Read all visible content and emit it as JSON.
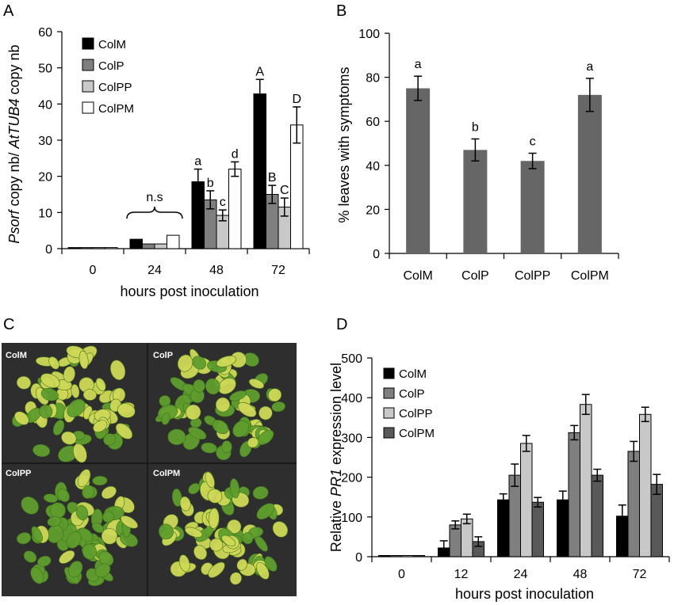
{
  "panels": {
    "a": {
      "letter": "A"
    },
    "b": {
      "letter": "B"
    },
    "c": {
      "letter": "C"
    },
    "d": {
      "letter": "D"
    }
  },
  "photo_labels": [
    "ColM",
    "ColP",
    "ColPP",
    "ColPM"
  ],
  "colors": {
    "ColM": "#000000",
    "ColP": "#7f7f7f",
    "ColPP": "#c8c8c8",
    "ColPM": "#ffffff",
    "panelB_bar": "#666666",
    "panelD_ColPM": "#595959",
    "photo_bg": "#2e2e2e",
    "plant_green": "#5f9e2d",
    "plant_yellow": "#cfd957"
  },
  "chart_data": [
    {
      "id": "A",
      "type": "bar",
      "ylabel_parts": [
        "Psorf",
        " copy nb/ ",
        "AtTUB4",
        " copy nb"
      ],
      "xlabel": "hours post inoculation",
      "categories": [
        "0",
        "24",
        "48",
        "72"
      ],
      "ylim": [
        0,
        60
      ],
      "yticks": [
        0,
        10,
        20,
        30,
        40,
        50,
        60
      ],
      "legend_position": "top-left",
      "series": [
        {
          "name": "ColM",
          "values": [
            0.3,
            2.6,
            18.5,
            42.8
          ],
          "errors": [
            0,
            0,
            3.5,
            4.0
          ]
        },
        {
          "name": "ColP",
          "values": [
            0.3,
            1.3,
            13.5,
            15.0
          ],
          "errors": [
            0,
            0,
            2.5,
            2.5
          ]
        },
        {
          "name": "ColPP",
          "values": [
            0.3,
            1.3,
            9.2,
            11.5
          ],
          "errors": [
            0,
            0,
            1.5,
            2.5
          ]
        },
        {
          "name": "ColPM",
          "values": [
            0.3,
            3.7,
            22.0,
            34.2
          ],
          "errors": [
            0,
            0,
            2.0,
            5.0
          ]
        }
      ],
      "significance": [
        [
          "",
          "",
          "a",
          "A"
        ],
        [
          "",
          "",
          "b",
          "B"
        ],
        [
          "",
          "",
          "c",
          "C"
        ],
        [
          "",
          "",
          "d",
          "D"
        ]
      ],
      "annotation": "n.s"
    },
    {
      "id": "B",
      "type": "bar",
      "ylabel": "% leaves with symptoms",
      "categories": [
        "ColM",
        "ColP",
        "ColPP",
        "ColPM"
      ],
      "values": [
        75,
        47,
        42,
        72
      ],
      "errors": [
        5.5,
        5.0,
        3.5,
        7.5
      ],
      "significance": [
        "a",
        "b",
        "c",
        "a"
      ],
      "ylim": [
        0,
        100
      ],
      "yticks": [
        0,
        20,
        40,
        60,
        80,
        100
      ]
    },
    {
      "id": "D",
      "type": "bar",
      "ylabel_parts": [
        "Relative ",
        "PR1",
        " expression level"
      ],
      "xlabel": "hours post inoculation",
      "categories": [
        "0",
        "12",
        "24",
        "48",
        "72"
      ],
      "ylim": [
        0,
        500
      ],
      "yticks": [
        0,
        100,
        200,
        300,
        400,
        500
      ],
      "legend_position": "top-left",
      "series": [
        {
          "name": "ColM",
          "values": [
            3,
            22,
            143,
            143,
            102
          ],
          "errors": [
            0,
            18,
            15,
            22,
            28
          ]
        },
        {
          "name": "ColP",
          "values": [
            3,
            80,
            205,
            312,
            265
          ],
          "errors": [
            0,
            10,
            28,
            18,
            25
          ]
        },
        {
          "name": "ColPP",
          "values": [
            3,
            95,
            285,
            383,
            358
          ],
          "errors": [
            0,
            12,
            20,
            25,
            18
          ]
        },
        {
          "name": "ColPM",
          "values": [
            3,
            38,
            137,
            205,
            182
          ],
          "errors": [
            0,
            12,
            12,
            15,
            25
          ]
        }
      ]
    }
  ]
}
